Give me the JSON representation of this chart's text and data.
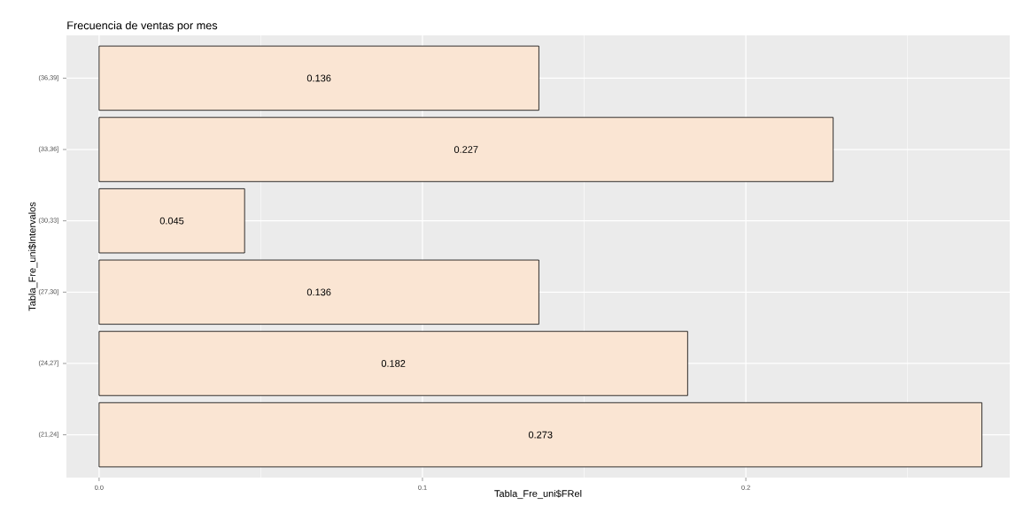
{
  "chart_data": {
    "type": "bar",
    "orientation": "horizontal",
    "title": "Frecuencia de ventas por mes",
    "xlabel": "Tabla_Fre_uni$FRel",
    "ylabel": "Tabla_Fre_uni$Intervalos",
    "categories": [
      "(36,39]",
      "(33,36]",
      "(30,33]",
      "(27,30]",
      "(24,27]",
      "(21,24]"
    ],
    "values": [
      0.136,
      0.227,
      0.045,
      0.136,
      0.182,
      0.273
    ],
    "color": "#fae5d3",
    "data_labels": true,
    "grid": true,
    "xlim": [
      -0.0101,
      0.2816
    ],
    "xticks": [
      {
        "value": 0,
        "label": "0.0"
      },
      {
        "value": 0.1,
        "label": "0.1"
      },
      {
        "value": 0.2,
        "label": "0.2"
      }
    ]
  }
}
